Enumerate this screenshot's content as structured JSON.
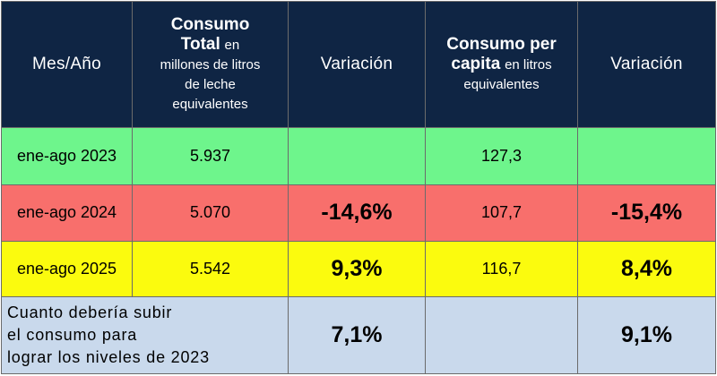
{
  "headers": {
    "col1": "Mes/Año",
    "col2_bold_1": "Consumo",
    "col2_bold_2": "Total",
    "col2_rest_1": "en",
    "col2_rest_2": "millones de litros",
    "col2_rest_3": "de leche",
    "col2_rest_4": "equivalentes",
    "col3": "Variación",
    "col4_bold_1": "Consumo per",
    "col4_bold_2": "capita",
    "col4_rest_1": "en litros",
    "col4_rest_2": "equivalentes",
    "col5": "Variación"
  },
  "rows": [
    {
      "period": "ene-ago 2023",
      "total": "5.937",
      "var_total": "",
      "per_capita": "127,3",
      "var_per_capita": ""
    },
    {
      "period": "ene-ago 2024",
      "total": "5.070",
      "var_total": "-14,6%",
      "per_capita": "107,7",
      "var_per_capita": "-15,4%"
    },
    {
      "period": "ene-ago 2025",
      "total": "5.542",
      "var_total": "9,3%",
      "per_capita": "116,7",
      "var_per_capita": "8,4%"
    }
  ],
  "summary": {
    "line1": "Cuanto debería subir",
    "line2": "el consumo para",
    "line3": "lograr los niveles de 2023",
    "var_total": "7,1%",
    "var_per_capita": "9,1%"
  },
  "colors": {
    "header_bg": "#0f2544",
    "row_2023": "#6ef58c",
    "row_2024": "#f86f6c",
    "row_2025": "#fbfb0e",
    "summary_bg": "#c9d9ec"
  }
}
